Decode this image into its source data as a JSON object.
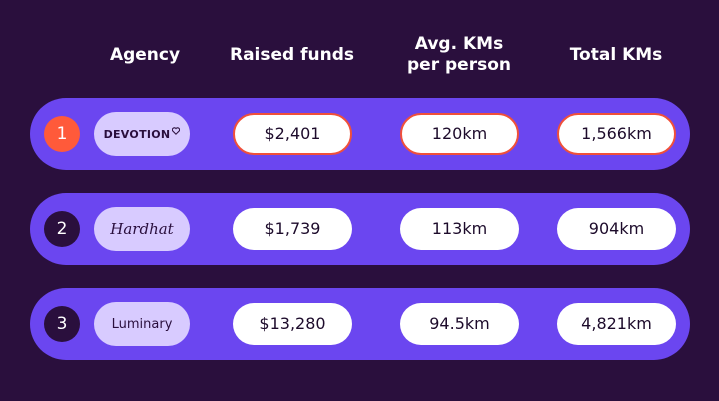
{
  "table": {
    "header": [
      "Agency",
      "Raised funds",
      "Avg. KMs per person",
      "Total KMs"
    ],
    "rows": [
      {
        "rank": "1",
        "agency": "DEVOTION",
        "cells": [
          "$2,401",
          "120km",
          "1,566km"
        ]
      },
      {
        "rank": "2",
        "agency": "Hardhat",
        "cells": [
          "$1,739",
          "113km",
          "904km"
        ]
      },
      {
        "rank": "3",
        "agency": "Luminary",
        "cells": [
          "$13,280",
          "94.5km",
          "4,821km"
        ]
      }
    ]
  }
}
